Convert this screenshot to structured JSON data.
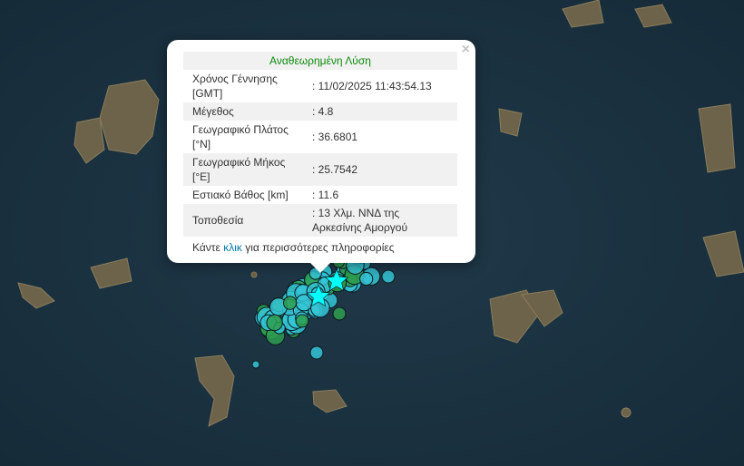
{
  "popup": {
    "title": "Αναθεωρημένη Λύση",
    "close_label": "×",
    "rows": [
      {
        "label": "Χρόνος Γέννησης [GMT]",
        "value": ": 11/02/2025 11:43:54.13"
      },
      {
        "label": "Μέγεθος",
        "value": ": 4.8"
      },
      {
        "label": "Γεωγραφικό Πλάτος [°N]",
        "value": ": 36.6801"
      },
      {
        "label": "Γεωγραφικό Μήκος [°E]",
        "value": ": 25.7542"
      },
      {
        "label": "Εστιακό Βάθος [km]",
        "value": ": 11.6"
      },
      {
        "label": "Τοποθεσία",
        "value": ": 13 Χλμ. ΝΝΔ της Αρκεσίνης Αμοργού"
      }
    ],
    "more_prefix": "Κάντε ",
    "more_link": "κλικ",
    "more_suffix": " για περισσότερες πληροφορίες"
  },
  "colors": {
    "sea": "#1b3240",
    "land": "#6b6148",
    "event_cyan": "#35c6d6",
    "event_green": "#2e9e4f",
    "star": "#00ffff",
    "title_green": "#0b8a0b",
    "link": "#0078a8"
  }
}
